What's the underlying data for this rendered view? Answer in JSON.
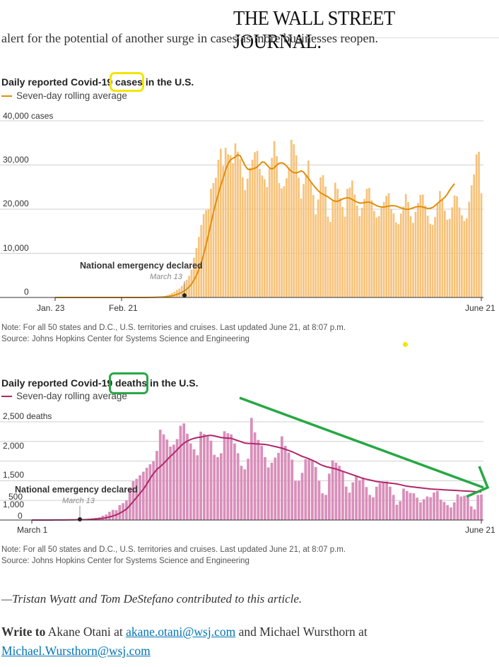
{
  "masthead": "THE WALL STREET JOURNAL.",
  "intro_text": "alert for the potential of another surge in cases as more businesses reopen.",
  "colors": {
    "cases_bar": "#f7c27a",
    "cases_line": "#e08e0b",
    "deaths_bar": "#d98fba",
    "deaths_line": "#b0276b",
    "highlight_yellow": "#f2e600",
    "highlight_green": "#27a844",
    "link": "#0274b6"
  },
  "chart_data": [
    {
      "type": "bar",
      "title": "Daily reported Covid-19 cases in the U.S.",
      "legend": "Seven-day rolling average",
      "y_unit_label": "40,000 cases",
      "y_ticks": [
        "30,000",
        "20,000",
        "10,000",
        "0"
      ],
      "ylim": [
        0,
        40000
      ],
      "x_tick_labels": [
        "Jan. 23",
        "Feb. 21",
        "June 21"
      ],
      "annotation": {
        "label": "National emergency declared",
        "date": "March 13"
      },
      "start_date": "Jan. 23",
      "values": [
        1,
        0,
        0,
        0,
        0,
        0,
        0,
        1,
        0,
        1,
        0,
        0,
        0,
        1,
        0,
        0,
        0,
        0,
        0,
        0,
        0,
        0,
        0,
        0,
        0,
        0,
        0,
        0,
        0,
        0,
        0,
        1,
        3,
        5,
        8,
        10,
        15,
        22,
        25,
        40,
        60,
        95,
        130,
        180,
        240,
        330,
        500,
        700,
        1000,
        1300,
        1700,
        2000,
        2600,
        3100,
        4000,
        4900,
        6300,
        9000,
        11200,
        13700,
        16400,
        18900,
        19800,
        20000,
        24600,
        25900,
        27100,
        31200,
        33700,
        29800,
        33900,
        32400,
        32200,
        30400,
        34900,
        33000,
        31300,
        27200,
        24300,
        26900,
        29400,
        31200,
        32900,
        33200,
        29100,
        27600,
        26800,
        25000,
        29200,
        31600,
        35400,
        32000,
        25900,
        24700,
        25200,
        27000,
        29500,
        35700,
        34700,
        32200,
        27100,
        22400,
        25700,
        27800,
        31000,
        26000,
        23200,
        18800,
        22200,
        27200,
        27700,
        25100,
        18300,
        17100,
        21800,
        26000,
        24600,
        22500,
        20500,
        18300,
        24600,
        24900,
        26500,
        23300,
        20800,
        18400,
        20300,
        22300,
        24600,
        24800,
        22000,
        19600,
        18100,
        18400,
        20300,
        21600,
        23000,
        23600,
        20000,
        19000,
        17000,
        16600,
        19000,
        20600,
        23400,
        21600,
        18400,
        16900,
        19400,
        21400,
        23200,
        23300,
        20800,
        18500,
        16700,
        16400,
        18200,
        21200,
        24100,
        22100,
        19700,
        17600,
        17800,
        20400,
        23100,
        22900,
        20400,
        18600,
        17300,
        17900,
        21700,
        25400,
        27900,
        32400,
        33000,
        23600
      ],
      "rolling_average": [
        0,
        0,
        0,
        0,
        0,
        0,
        0,
        0,
        0,
        0,
        0,
        0,
        0,
        0,
        0,
        0,
        0,
        0,
        0,
        0,
        0,
        0,
        0,
        0,
        0,
        0,
        0,
        0,
        0,
        0,
        0,
        0,
        0,
        1,
        2,
        3,
        5,
        8,
        12,
        17,
        25,
        36,
        52,
        73,
        101,
        138,
        195,
        277,
        380,
        514,
        682,
        884,
        1143,
        1457,
        1862,
        2376,
        3016,
        3929,
        4991,
        6274,
        7829,
        9786,
        12005,
        14327,
        16820,
        19263,
        21457,
        23441,
        25376,
        27014,
        28879,
        30314,
        31186,
        31514,
        31814,
        32343,
        32057,
        30971,
        29861,
        29086,
        28936,
        29114,
        29257,
        29586,
        30086,
        30686,
        30586,
        29986,
        29386,
        29086,
        29386,
        29986,
        30386,
        30486,
        30286,
        29786,
        29086,
        28586,
        28286,
        28186,
        28386,
        28686,
        28386,
        27686,
        26986,
        26186,
        25486,
        24786,
        24186,
        23686,
        23386,
        23086,
        22786,
        22386,
        21986,
        21786,
        21786,
        21986,
        22286,
        22486,
        22586,
        22486,
        22186,
        21886,
        21586,
        21386,
        21386,
        21486,
        21586,
        21586,
        21386,
        21086,
        20786,
        20586,
        20486,
        20486,
        20586,
        20686,
        20786,
        20786,
        20686,
        20486,
        20286,
        20086,
        19986,
        19986,
        20086,
        20286,
        20486,
        20586,
        20586,
        20486,
        20286,
        20186,
        20186,
        20386,
        20786,
        21286,
        21786,
        22186,
        22686,
        23386,
        24286,
        25086,
        25786
      ]
    },
    {
      "type": "bar",
      "title": "Daily reported Covid-19 deaths in the U.S.",
      "legend": "Seven-day rolling average",
      "y_unit_label": "2,500 deaths",
      "y_ticks": [
        "2,000",
        "1,500",
        "1,000",
        "500",
        "0"
      ],
      "ylim": [
        0,
        2500
      ],
      "x_tick_labels": [
        "March 1",
        "June 21"
      ],
      "annotation": {
        "label": "National emergency declared",
        "date": "March 13"
      },
      "start_date": "March 1",
      "values": [
        1,
        1,
        1,
        1,
        1,
        2,
        2,
        3,
        4,
        5,
        5,
        6,
        8,
        10,
        12,
        20,
        25,
        35,
        45,
        55,
        70,
        110,
        140,
        210,
        260,
        250,
        380,
        430,
        500,
        820,
        990,
        1050,
        1140,
        1230,
        1330,
        1420,
        1500,
        1760,
        2300,
        2180,
        2050,
        1870,
        1920,
        2060,
        2400,
        2460,
        2200,
        1950,
        1800,
        1650,
        2250,
        2190,
        2130,
        2020,
        1660,
        1600,
        1700,
        2260,
        2210,
        2180,
        1950,
        1700,
        1380,
        1290,
        1560,
        2600,
        2230,
        2040,
        1890,
        1600,
        1340,
        1460,
        1590,
        1710,
        2130,
        1890,
        1720,
        1540,
        1000,
        1000,
        1200,
        1550,
        1540,
        1530,
        1350,
        1000,
        680,
        640,
        1180,
        1520,
        1460,
        1380,
        1230,
        850,
        700,
        960,
        1120,
        1010,
        1080,
        840,
        640,
        580,
        850,
        940,
        960,
        980,
        850,
        640,
        390,
        480,
        800,
        740,
        690,
        680,
        570,
        450,
        530,
        600,
        580,
        700,
        740,
        520,
        460,
        380,
        320,
        450,
        650,
        600,
        620,
        580,
        350,
        270,
        640,
        650
      ],
      "rolling_average": [
        0,
        0,
        0,
        0,
        1,
        1,
        1,
        2,
        2,
        3,
        3,
        4,
        5,
        6,
        7,
        9,
        12,
        16,
        21,
        27,
        34,
        44,
        58,
        78,
        104,
        132,
        173,
        221,
        278,
        370,
        470,
        574,
        678,
        782,
        914,
        1055,
        1183,
        1288,
        1360,
        1440,
        1533,
        1620,
        1699,
        1786,
        1880,
        1955,
        2010,
        2050,
        2080,
        2100,
        2110,
        2130,
        2150,
        2155,
        2140,
        2120,
        2100,
        2090,
        2085,
        2080,
        2050,
        2020,
        1990,
        1960,
        1950,
        1950,
        1940,
        1935,
        1930,
        1925,
        1910,
        1890,
        1870,
        1850,
        1830,
        1800,
        1770,
        1740,
        1700,
        1660,
        1620,
        1590,
        1560,
        1520,
        1480,
        1430,
        1390,
        1360,
        1340,
        1320,
        1300,
        1270,
        1240,
        1210,
        1180,
        1150,
        1120,
        1090,
        1060,
        1040,
        1020,
        1000,
        980,
        970,
        960,
        950,
        940,
        930,
        920,
        900,
        880,
        860,
        850,
        840,
        830,
        820,
        810,
        800,
        790,
        785,
        780,
        775,
        770,
        765,
        760,
        755,
        750,
        745,
        740,
        735,
        730,
        725,
        720,
        715
      ]
    }
  ],
  "notes": {
    "note_line": "Note: For all 50 states and D.C., U.S. territories and cruises. Last updated June 21, at 8:07 p.m.",
    "source_line": "Source: Johns Hopkins Center for Systems Science and Engineering"
  },
  "byline": "—Tristan Wyatt and Tom DeStefano contributed to this article.",
  "write_to": {
    "prefix": "Write to",
    "author1": "Akane Otani at",
    "email1": "akane.otani@wsj.com",
    "connector": "and Michael Wursthorn at",
    "email2": "Michael.Wursthorn@wsj.com"
  }
}
